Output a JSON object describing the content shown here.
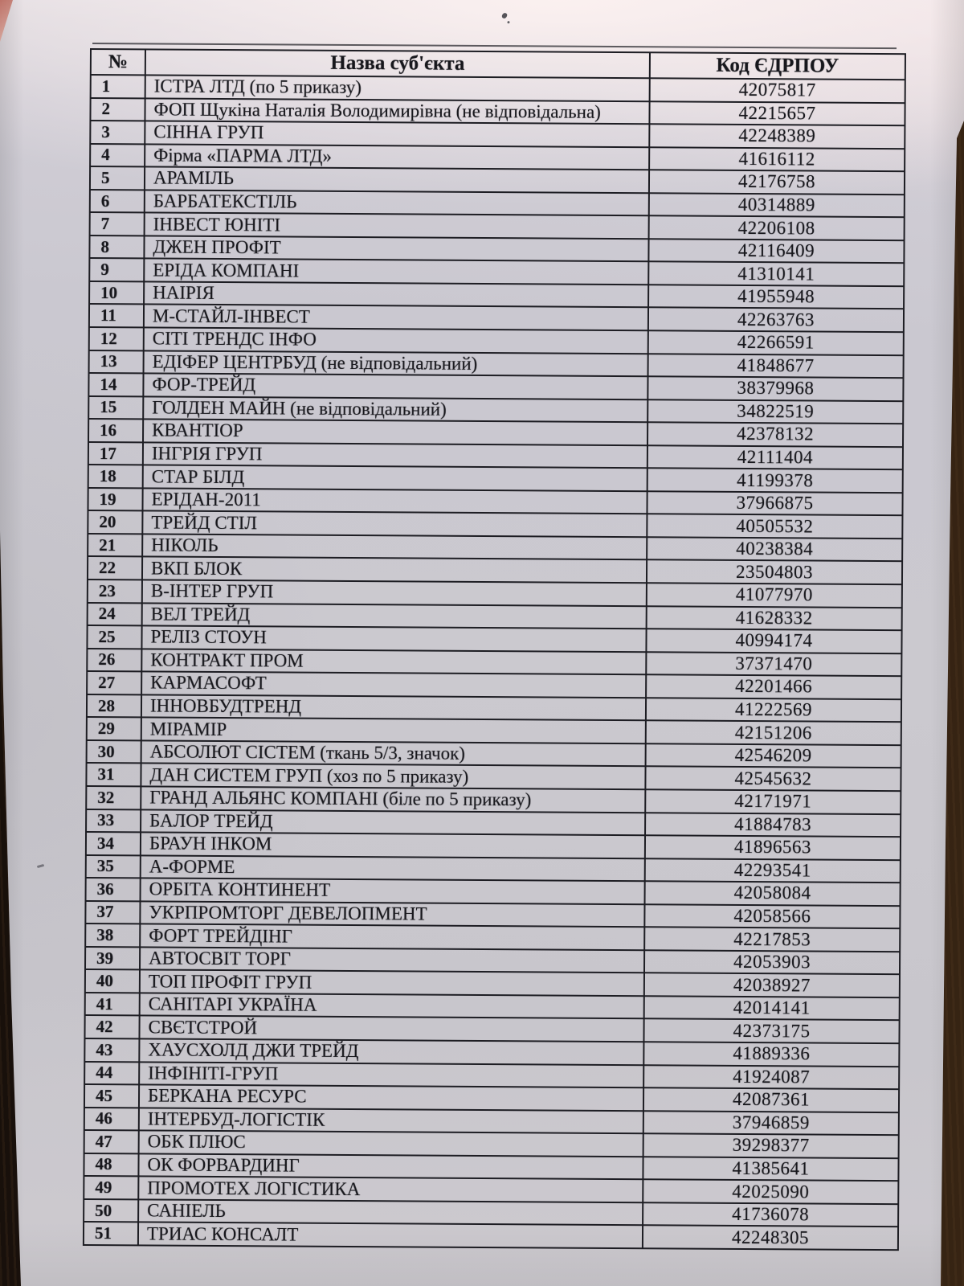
{
  "table": {
    "headers": {
      "num": "№",
      "name": "Назва суб'єкта",
      "code": "Код ЄДРПОУ"
    },
    "rows": [
      {
        "num": "1",
        "name": "ІСТРА ЛТД (по 5 приказу)",
        "code": "42075817"
      },
      {
        "num": "2",
        "name": "ФОП Щукіна Наталія Володимирівна (не відповідальна)",
        "code": "42215657"
      },
      {
        "num": "3",
        "name": "СІННА ГРУП",
        "code": "42248389"
      },
      {
        "num": "4",
        "name": "Фірма «ПАРМА ЛТД»",
        "code": "41616112"
      },
      {
        "num": "5",
        "name": "АРАМІЛЬ",
        "code": "42176758"
      },
      {
        "num": "6",
        "name": "БАРБАТЕКСТІЛЬ",
        "code": "40314889"
      },
      {
        "num": "7",
        "name": "ІНВЕСТ ЮНІТІ",
        "code": "42206108"
      },
      {
        "num": "8",
        "name": "ДЖЕН ПРОФІТ",
        "code": "42116409"
      },
      {
        "num": "9",
        "name": "ЕРІДА КОМПАНІ",
        "code": "41310141"
      },
      {
        "num": "10",
        "name": "НАІРІЯ",
        "code": "41955948"
      },
      {
        "num": "11",
        "name": "М-СТАЙЛ-ІНВЕСТ",
        "code": "42263763"
      },
      {
        "num": "12",
        "name": "СІТІ ТРЕНДС ІНФО",
        "code": "42266591"
      },
      {
        "num": "13",
        "name": "ЕДІФЕР ЦЕНТРБУД (не відповідальний)",
        "code": "41848677"
      },
      {
        "num": "14",
        "name": "ФОР-ТРЕЙД",
        "code": "38379968"
      },
      {
        "num": "15",
        "name": "ГОЛДЕН МАЙН (не відповідальний)",
        "code": "34822519"
      },
      {
        "num": "16",
        "name": "КВАНТІОР",
        "code": "42378132"
      },
      {
        "num": "17",
        "name": "ІНГРІЯ ГРУП",
        "code": "42111404"
      },
      {
        "num": "18",
        "name": "СТАР БІЛД",
        "code": "41199378"
      },
      {
        "num": "19",
        "name": "ЕРІДАН-2011",
        "code": "37966875"
      },
      {
        "num": "20",
        "name": "ТРЕЙД СТІЛ",
        "code": "40505532"
      },
      {
        "num": "21",
        "name": "НІКОЛЬ",
        "code": "40238384"
      },
      {
        "num": "22",
        "name": "ВКП БЛОК",
        "code": "23504803"
      },
      {
        "num": "23",
        "name": "В-ІНТЕР ГРУП",
        "code": "41077970"
      },
      {
        "num": "24",
        "name": "ВЕЛ ТРЕЙД",
        "code": "41628332"
      },
      {
        "num": "25",
        "name": "РЕЛІЗ СТОУН",
        "code": "40994174"
      },
      {
        "num": "26",
        "name": "КОНТРАКТ ПРОМ",
        "code": "37371470"
      },
      {
        "num": "27",
        "name": "КАРМАСОФТ",
        "code": "42201466"
      },
      {
        "num": "28",
        "name": "ІННОВБУДТРЕНД",
        "code": "41222569"
      },
      {
        "num": "29",
        "name": "МІРАМІР",
        "code": "42151206"
      },
      {
        "num": "30",
        "name": "АБСОЛЮТ СІСТЕМ (ткань 5/3, значок)",
        "code": "42546209"
      },
      {
        "num": "31",
        "name": "ДАН СИСТЕМ ГРУП (хоз по 5 приказу)",
        "code": "42545632"
      },
      {
        "num": "32",
        "name": "ГРАНД АЛЬЯНС КОМПАНІ (біле по 5 приказу)",
        "code": "42171971"
      },
      {
        "num": "33",
        "name": "БАЛОР ТРЕЙД",
        "code": "41884783"
      },
      {
        "num": "34",
        "name": "БРАУН ІНКОМ",
        "code": "41896563"
      },
      {
        "num": "35",
        "name": "А-ФОРМЕ",
        "code": "42293541"
      },
      {
        "num": "36",
        "name": "ОРБІТА КОНТИНЕНТ",
        "code": "42058084"
      },
      {
        "num": "37",
        "name": "УКРПРОМТОРГ ДЕВЕЛОПМЕНТ",
        "code": "42058566"
      },
      {
        "num": "38",
        "name": "ФОРТ ТРЕЙДІНГ",
        "code": "42217853"
      },
      {
        "num": "39",
        "name": "АВТОСВІТ ТОРГ",
        "code": "42053903"
      },
      {
        "num": "40",
        "name": "ТОП ПРОФІТ ГРУП",
        "code": "42038927"
      },
      {
        "num": "41",
        "name": "САНІТАРІ УКРАЇНА",
        "code": "42014141"
      },
      {
        "num": "42",
        "name": "СВЄТСТРОЙ",
        "code": "42373175"
      },
      {
        "num": "43",
        "name": "ХАУСХОЛД ДЖИ ТРЕЙД",
        "code": "41889336"
      },
      {
        "num": "44",
        "name": "ІНФІНІТІ-ГРУП",
        "code": "41924087"
      },
      {
        "num": "45",
        "name": "БЕРКАНА РЕСУРС",
        "code": "42087361"
      },
      {
        "num": "46",
        "name": "ІНТЕРБУД-ЛОГІСТІК",
        "code": "37946859"
      },
      {
        "num": "47",
        "name": "ОБК ПЛЮС",
        "code": "39298377"
      },
      {
        "num": "48",
        "name": "ОК ФОРВАРДИНГ",
        "code": "41385641"
      },
      {
        "num": "49",
        "name": "ПРОМОТЕХ ЛОГІСТИКА",
        "code": "42025090"
      },
      {
        "num": "50",
        "name": "САНІЕЛЬ",
        "code": "41736078"
      },
      {
        "num": "51",
        "name": "ТРИАС КОНСАЛТ",
        "code": "42248305"
      }
    ]
  },
  "colors": {
    "paper": "#cbc9cf",
    "desk": "#261911",
    "ink": "#17171c",
    "table_line": "#1d1d23",
    "corner_blush": "#bd7268"
  }
}
